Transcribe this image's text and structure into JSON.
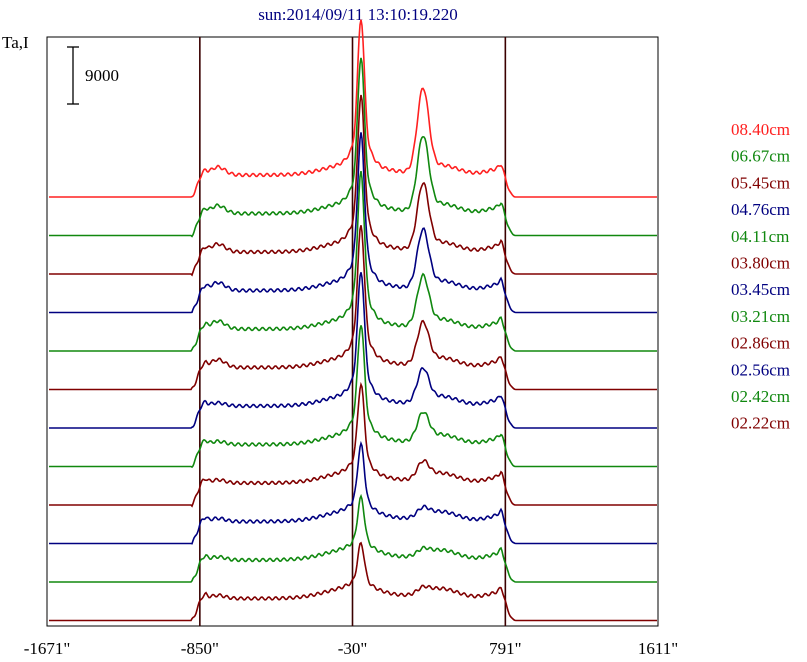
{
  "chart_data": {
    "type": "line",
    "title": "sun:2014/09/11 13:10:19.220",
    "ylabel": "Ta,I",
    "scale_bar_label": "9000",
    "scale_bar_value": 9000,
    "xlim": [
      -1671,
      1611
    ],
    "x_ticks": [
      -1671,
      -850,
      -30,
      791,
      1611
    ],
    "x_tick_labels": [
      "-1671\"",
      "-850\"",
      "-30\"",
      "791\"",
      "1611\""
    ],
    "vertical_markers": [
      -850,
      -30,
      791
    ],
    "colors": {
      "red": "#ff2020",
      "green": "#10880f",
      "darkred": "#800000",
      "blue": "#000080",
      "marker": "#3a0000",
      "title": "#000080"
    },
    "legend_position": "right",
    "series": [
      {
        "name": "08.40cm",
        "color": "#ff2020",
        "peak": 1.0,
        "flare": 0.62
      },
      {
        "name": "06.67cm",
        "color": "#10880f",
        "peak": 1.0,
        "flare": 0.55
      },
      {
        "name": "05.45cm",
        "color": "#800000",
        "peak": 1.0,
        "flare": 0.48
      },
      {
        "name": "04.76cm",
        "color": "#000080",
        "peak": 1.0,
        "flare": 0.42
      },
      {
        "name": "04.11cm",
        "color": "#10880f",
        "peak": 1.0,
        "flare": 0.36
      },
      {
        "name": "03.80cm",
        "color": "#800000",
        "peak": 0.9,
        "flare": 0.3
      },
      {
        "name": "03.45cm",
        "color": "#000080",
        "peak": 0.85,
        "flare": 0.24
      },
      {
        "name": "03.21cm",
        "color": "#10880f",
        "peak": 0.75,
        "flare": 0.2
      },
      {
        "name": "02.86cm",
        "color": "#800000",
        "peak": 0.6,
        "flare": 0.12
      },
      {
        "name": "02.56cm",
        "color": "#000080",
        "peak": 0.45,
        "flare": 0.06
      },
      {
        "name": "02.42cm",
        "color": "#10880f",
        "peak": 0.35,
        "flare": 0.04
      },
      {
        "name": "02.22cm",
        "color": "#800000",
        "peak": 0.3,
        "flare": 0.04
      }
    ]
  }
}
